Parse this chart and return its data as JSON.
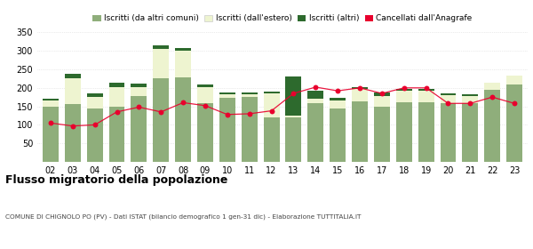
{
  "years": [
    "02",
    "03",
    "04",
    "05",
    "06",
    "07",
    "08",
    "09",
    "10",
    "11",
    "12",
    "13",
    "14",
    "15",
    "16",
    "17",
    "18",
    "19",
    "20",
    "21",
    "22",
    "23"
  ],
  "iscritti_altri_comuni": [
    150,
    157,
    145,
    148,
    178,
    225,
    228,
    158,
    172,
    175,
    120,
    120,
    158,
    145,
    163,
    150,
    160,
    160,
    158,
    158,
    195,
    210
  ],
  "iscritti_estero": [
    15,
    70,
    30,
    55,
    25,
    80,
    72,
    45,
    10,
    8,
    65,
    5,
    12,
    22,
    33,
    28,
    33,
    33,
    23,
    20,
    18,
    22
  ],
  "iscritti_altri": [
    5,
    12,
    10,
    10,
    8,
    10,
    8,
    5,
    5,
    5,
    5,
    105,
    22,
    5,
    5,
    10,
    5,
    5,
    5,
    5,
    0,
    0
  ],
  "cancellati": [
    105,
    97,
    100,
    135,
    148,
    135,
    160,
    152,
    128,
    130,
    138,
    185,
    202,
    192,
    200,
    185,
    200,
    200,
    158,
    158,
    175,
    158
  ],
  "color_altri_comuni": "#8fae7b",
  "color_estero": "#eef4d0",
  "color_altri": "#2d6a2d",
  "color_cancellati": "#e8002d",
  "title": "Flusso migratorio della popolazione",
  "subtitle": "COMUNE DI CHIGNOLO PO (PV) - Dati ISTAT (bilancio demografico 1 gen-31 dic) - Elaborazione TUTTITALIA.IT",
  "legend_labels": [
    "Iscritti (da altri comuni)",
    "Iscritti (dall'estero)",
    "Iscritti (altri)",
    "Cancellati dall'Anagrafe"
  ],
  "ylim": [
    0,
    350
  ],
  "yticks": [
    0,
    50,
    100,
    150,
    200,
    250,
    300,
    350
  ],
  "background_color": "#ffffff",
  "grid_color": "#d8d8d8"
}
